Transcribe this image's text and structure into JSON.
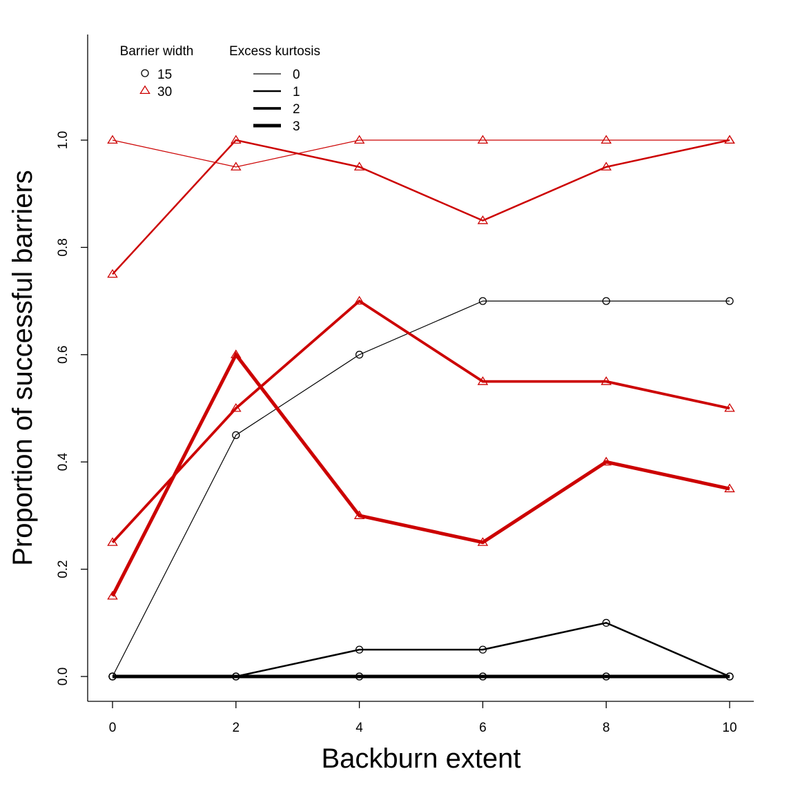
{
  "chart_data": {
    "type": "line",
    "xlabel": "Backburn extent",
    "ylabel": "Proportion of successful barriers",
    "xlim": [
      0,
      10
    ],
    "ylim": [
      0,
      1
    ],
    "x_ticks": [
      0,
      2,
      4,
      6,
      8,
      10
    ],
    "y_ticks": [
      0.0,
      0.2,
      0.4,
      0.6,
      0.8,
      1.0
    ],
    "y_tick_labels": [
      "0.0",
      "0.2",
      "0.4",
      "0.6",
      "0.8",
      "1.0"
    ],
    "x": [
      0,
      2,
      4,
      6,
      8,
      10
    ],
    "legend_barrier": {
      "title": "Barrier width",
      "entries": [
        {
          "label": "15",
          "marker": "circle",
          "color": "#000000"
        },
        {
          "label": "30",
          "marker": "triangle",
          "color": "#cc0000"
        }
      ]
    },
    "legend_kurtosis": {
      "title": "Excess kurtosis",
      "entries": [
        {
          "label": "0",
          "kurtosis": 0
        },
        {
          "label": "1",
          "kurtosis": 1
        },
        {
          "label": "2",
          "kurtosis": 2
        },
        {
          "label": "3",
          "kurtosis": 3
        }
      ]
    },
    "series": [
      {
        "barrier_width": 30,
        "kurtosis": 0,
        "marker": "triangle",
        "color": "#cc0000",
        "values": [
          1.0,
          0.95,
          1.0,
          1.0,
          1.0,
          1.0
        ]
      },
      {
        "barrier_width": 30,
        "kurtosis": 1,
        "marker": "triangle",
        "color": "#cc0000",
        "values": [
          0.75,
          1.0,
          0.95,
          0.85,
          0.95,
          1.0
        ]
      },
      {
        "barrier_width": 30,
        "kurtosis": 2,
        "marker": "triangle",
        "color": "#cc0000",
        "values": [
          0.25,
          0.5,
          0.7,
          0.55,
          0.55,
          0.5
        ]
      },
      {
        "barrier_width": 30,
        "kurtosis": 3,
        "marker": "triangle",
        "color": "#cc0000",
        "values": [
          0.15,
          0.6,
          0.3,
          0.25,
          0.4,
          0.35
        ]
      },
      {
        "barrier_width": 15,
        "kurtosis": 0,
        "marker": "circle",
        "color": "#000000",
        "values": [
          0.0,
          0.45,
          0.6,
          0.7,
          0.7,
          0.7
        ]
      },
      {
        "barrier_width": 15,
        "kurtosis": 1,
        "marker": "circle",
        "color": "#000000",
        "values": [
          0.0,
          0.0,
          0.05,
          0.05,
          0.1,
          0.0
        ]
      },
      {
        "barrier_width": 15,
        "kurtosis": 2,
        "marker": "circle",
        "color": "#000000",
        "values": [
          0.0,
          0.0,
          0.0,
          0.0,
          0.0,
          0.0
        ]
      },
      {
        "barrier_width": 15,
        "kurtosis": 3,
        "marker": "circle",
        "color": "#000000",
        "values": [
          0.0,
          0.0,
          0.0,
          0.0,
          0.0,
          0.0
        ]
      }
    ]
  }
}
